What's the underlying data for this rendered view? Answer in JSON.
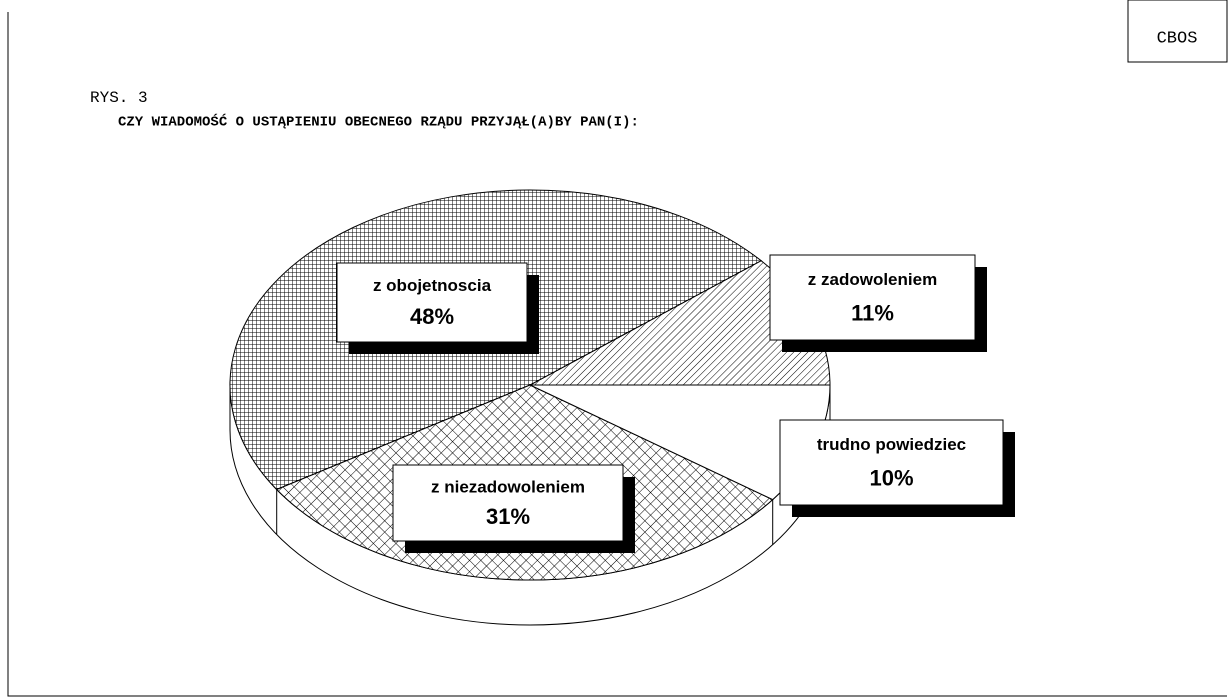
{
  "source": "CBOS",
  "figure_label": "RYS. 3",
  "chart_data": {
    "type": "pie",
    "title": "CZY WIADOMOŚĆ O USTĄPIENIU OBECNEGO RZĄDU PRZYJĄŁ(A)BY PAN(I):",
    "categories": [
      "z zadowoleniem",
      "z obojetnoscia",
      "z niezadowoleniem",
      "trudno powiedziec"
    ],
    "values": [
      11,
      48,
      31,
      10
    ],
    "value_labels": [
      "11%",
      "48%",
      "31%",
      "10%"
    ],
    "patterns": [
      "diagonal",
      "grid",
      "crosshatch",
      "none"
    ]
  }
}
